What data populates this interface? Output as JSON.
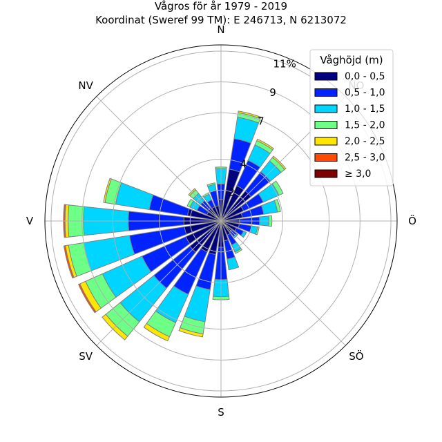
{
  "chart_data": {
    "type": "polar-bar",
    "title": "Vågros för år 1979 - 2019",
    "subtitle": "Koordinat (Sweref 99 TM): E 246713, N 6213072",
    "directions": [
      "N",
      "NO",
      "Ö",
      "SÖ",
      "S",
      "SV",
      "V",
      "NV"
    ],
    "ring_ticks": [
      2,
      4,
      7,
      9,
      11
    ],
    "ring_tick_labels": [
      "2",
      "4",
      "7",
      "9",
      "11%"
    ],
    "rmax": 11.4,
    "legend": {
      "title": "Våghöjd (m)",
      "placement": "top-right"
    },
    "series": [
      {
        "name": "0,0 - 0,5",
        "color": "#00007f"
      },
      {
        "name": "0,5 - 1,0",
        "color": "#0023ff"
      },
      {
        "name": "1,0 - 1,5",
        "color": "#00d5ff"
      },
      {
        "name": "1,5 - 2,0",
        "color": "#6eff86"
      },
      {
        "name": "2,0 - 2,5",
        "color": "#ffe600"
      },
      {
        "name": "2,5 - 3,0",
        "color": "#ff4a00"
      },
      {
        "name": "≥ 3,0",
        "color": "#7f0000"
      }
    ],
    "sector_directions_deg": [
      0,
      15,
      30,
      45,
      60,
      75,
      90,
      105,
      120,
      135,
      150,
      165,
      180,
      195,
      210,
      225,
      240,
      255,
      270,
      285,
      300,
      315,
      330,
      345
    ],
    "cumulative_percent": [
      [
        1.4,
        2.4,
        3.4,
        3.5,
        3.5,
        3.5,
        3.5
      ],
      [
        3.4,
        5.4,
        6.8,
        7.1,
        7.2,
        7.2,
        7.2
      ],
      [
        2.5,
        4.3,
        5.4,
        5.7,
        5.8,
        5.8,
        5.8
      ],
      [
        2.5,
        4.1,
        5.0,
        5.3,
        5.4,
        5.4,
        5.4
      ],
      [
        1.6,
        3.0,
        4.1,
        4.4,
        4.4,
        4.4,
        4.4
      ],
      [
        1.4,
        2.8,
        3.7,
        3.9,
        3.9,
        3.9,
        3.9
      ],
      [
        1.2,
        2.5,
        3.1,
        3.3,
        3.3,
        3.3,
        3.3
      ],
      [
        1.2,
        2.0,
        2.4,
        2.5,
        2.5,
        2.5,
        2.5
      ],
      [
        1.1,
        1.6,
        1.8,
        1.8,
        1.8,
        1.8,
        1.8
      ],
      [
        0.9,
        1.3,
        1.4,
        1.4,
        1.4,
        1.4,
        1.4
      ],
      [
        1.0,
        1.7,
        2.2,
        2.3,
        2.3,
        2.3,
        2.3
      ],
      [
        1.3,
        2.5,
        3.2,
        3.2,
        3.2,
        3.2,
        3.2
      ],
      [
        1.7,
        3.8,
        4.9,
        5.1,
        5.1,
        5.1,
        5.1
      ],
      [
        2.2,
        4.5,
        6.6,
        7.4,
        7.6,
        7.6,
        7.6
      ],
      [
        2.2,
        5.2,
        7.2,
        8.2,
        8.5,
        8.5,
        8.5
      ],
      [
        2.6,
        5.6,
        8.4,
        9.6,
        9.9,
        9.9,
        9.9
      ],
      [
        2.5,
        5.6,
        8.4,
        9.6,
        10.0,
        10.1,
        10.1
      ],
      [
        2.4,
        6.0,
        9.0,
        10.0,
        10.2,
        10.3,
        10.3
      ],
      [
        2.4,
        6.0,
        8.9,
        9.9,
        10.1,
        10.2,
        10.2
      ],
      [
        2.2,
        4.7,
        6.9,
        7.6,
        7.7,
        7.7,
        7.7
      ],
      [
        1.0,
        1.7,
        2.2,
        2.4,
        2.4,
        2.4,
        2.4
      ],
      [
        1.1,
        1.7,
        2.3,
        2.6,
        2.7,
        2.7,
        2.7
      ],
      [
        1.0,
        1.5,
        1.9,
        2.0,
        2.0,
        2.0,
        2.0
      ],
      [
        1.0,
        2.0,
        2.4,
        2.5,
        2.5,
        2.5,
        2.5
      ]
    ]
  }
}
